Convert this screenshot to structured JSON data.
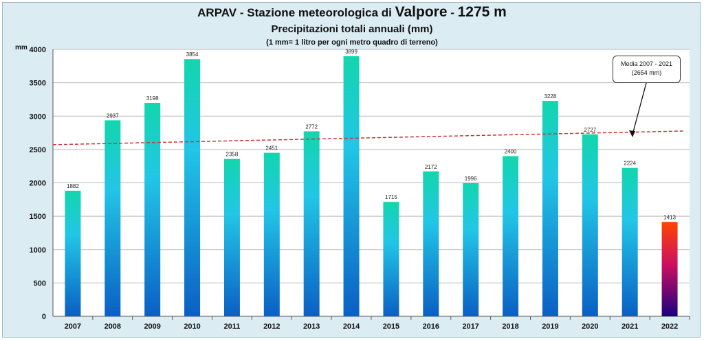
{
  "header": {
    "title_prefix": "ARPAV - Stazione meteorologica di ",
    "title_station": "Valpore",
    "title_dash": " - ",
    "title_altitude": "1275 m",
    "subtitle": "Precipitazioni totali annuali (mm)",
    "note": "(1 mm= 1 litro per ogni metro quadro di terreno)"
  },
  "chart_data": {
    "type": "bar",
    "title": "ARPAV - Stazione meteorologica di Valpore - 1275 m",
    "subtitle": "Precipitazioni totali annuali (mm)",
    "ylabel": "mm",
    "xlabel": "",
    "ylim": [
      0,
      4000
    ],
    "yticks": [
      0,
      500,
      1000,
      1500,
      2000,
      2500,
      3000,
      3500,
      4000
    ],
    "categories": [
      "2007",
      "2008",
      "2009",
      "2010",
      "2011",
      "2012",
      "2013",
      "2014",
      "2015",
      "2016",
      "2017",
      "2018",
      "2019",
      "2020",
      "2021",
      "2022"
    ],
    "values": [
      1882,
      2937,
      3198,
      3854,
      2358,
      2451,
      2772,
      3899,
      1715,
      2172,
      1996,
      2400,
      3228,
      2727,
      2224,
      1413
    ],
    "grid": true,
    "mean_line": {
      "label_line1": "Media 2007 - 2021",
      "label_line2": "(2654 mm)",
      "value": 2654
    },
    "colors": {
      "bar_top": "#12d6ad",
      "bar_mid": "#22c6e6",
      "bar_bottom": "#0a5fc4",
      "highlight_top": "#ff4400",
      "highlight_mid": "#cc1060",
      "highlight_bottom": "#1a0080",
      "mean_line": "#d03030"
    }
  }
}
